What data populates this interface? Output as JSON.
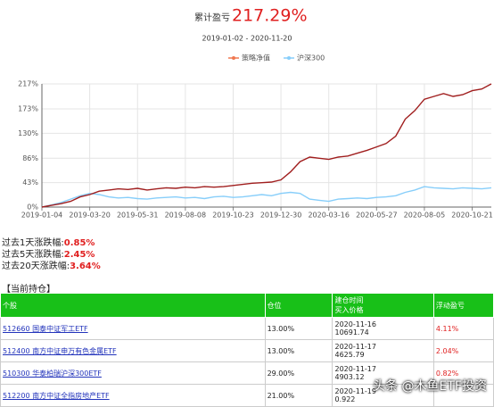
{
  "chart_data": {
    "type": "line",
    "title_label": "累计盈亏",
    "title": "217.29%",
    "subtitle": "2019-01-02 - 2020-11-20",
    "categories": [
      "2019-01-04",
      null,
      null,
      null,
      null,
      "2019-03-20",
      null,
      null,
      null,
      null,
      "2019-05-31",
      null,
      null,
      null,
      null,
      "2019-08-08",
      null,
      null,
      null,
      null,
      "2019-10-23",
      null,
      null,
      null,
      null,
      "2019-12-30",
      null,
      null,
      null,
      null,
      "2020-03-16",
      null,
      null,
      null,
      null,
      "2020-05-27",
      null,
      null,
      null,
      null,
      "2020-08-05",
      null,
      null,
      null,
      null,
      "2020-10-21",
      null,
      null
    ],
    "series": [
      {
        "name": "策略净值",
        "color": "#a01e1e",
        "legend_color": "#f07850",
        "values": [
          0,
          3,
          6,
          10,
          18,
          22,
          28,
          30,
          32,
          31,
          33,
          30,
          32,
          34,
          33,
          35,
          34,
          36,
          35,
          36,
          38,
          40,
          42,
          43,
          44,
          48,
          62,
          80,
          88,
          86,
          84,
          88,
          90,
          95,
          100,
          106,
          112,
          125,
          155,
          170,
          190,
          195,
          200,
          195,
          198,
          205,
          208,
          217
        ]
      },
      {
        "name": "沪深300",
        "color": "#87cefa",
        "values": [
          0,
          4,
          8,
          14,
          20,
          24,
          22,
          18,
          16,
          17,
          15,
          14,
          16,
          17,
          18,
          16,
          17,
          15,
          18,
          19,
          17,
          18,
          20,
          22,
          20,
          24,
          26,
          24,
          14,
          12,
          10,
          14,
          15,
          16,
          15,
          17,
          18,
          20,
          26,
          30,
          36,
          34,
          33,
          32,
          34,
          33,
          32,
          34
        ]
      }
    ],
    "ylim": [
      0,
      217
    ],
    "yticks": [
      {
        "value": 0,
        "label": "0%"
      },
      {
        "value": 43,
        "label": "43%"
      },
      {
        "value": 86,
        "label": "86%"
      },
      {
        "value": 130,
        "label": "130%"
      },
      {
        "value": 173,
        "label": "173%"
      },
      {
        "value": 217,
        "label": "217%"
      }
    ],
    "grid": true
  },
  "stats": [
    [
      "过去1天涨跌幅:",
      "0.85%"
    ],
    [
      "过去5天涨跌幅:",
      "2.45%"
    ],
    [
      "过去20天涨跌幅:",
      "3.64%"
    ]
  ],
  "holdings": {
    "title": "【当前持仓】",
    "header": [
      "个股",
      "仓位",
      "建仓时间",
      "买入价格",
      "浮动盈亏"
    ],
    "rows": [
      [
        "512660 国泰中证军工ETF",
        "13.00%",
        "2020-11-16",
        "10691.74",
        "4.11%"
      ],
      [
        "512400 南方中证申万有色金属ETF",
        "13.00%",
        "2020-11-17",
        "4625.79",
        "2.04%"
      ],
      [
        "510300 华泰柏瑞沪深300ETF",
        "29.00%",
        "2020-11-17",
        "4903.12",
        "0.82%"
      ],
      [
        "512200 南方中证全指房地产ETF",
        "21.00%",
        "2020-11-19",
        "0.922",
        null
      ]
    ]
  },
  "watermark": "头条 @木鱼ETF投资"
}
